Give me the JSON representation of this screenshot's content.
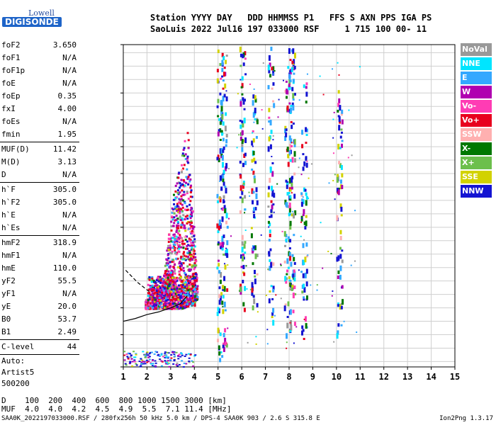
{
  "logo": {
    "top": "Lowell",
    "main": "DIGISONDE"
  },
  "header": {
    "line1": "Station YYYY DAY   DDD HHMMSS P1   FFS S AXN PPS IGA PS",
    "line2": "SaoLuis 2022 Jul16 197 033000 RSF     1 715 100 00- 11"
  },
  "parameters": [
    [
      {
        "k": "foF2",
        "v": "3.650"
      },
      {
        "k": "foF1",
        "v": "N/A"
      },
      {
        "k": "foF1p",
        "v": "N/A"
      },
      {
        "k": "foE",
        "v": "N/A"
      },
      {
        "k": "foEp",
        "v": "0.35"
      },
      {
        "k": "fxI",
        "v": "4.00"
      },
      {
        "k": "foEs",
        "v": "N/A"
      },
      {
        "k": "fmin",
        "v": "1.95"
      }
    ],
    [
      {
        "k": "MUF(D)",
        "v": "11.42"
      },
      {
        "k": "M(D)",
        "v": "3.13"
      },
      {
        "k": "D",
        "v": "N/A"
      }
    ],
    [
      {
        "k": "h`F",
        "v": "305.0"
      },
      {
        "k": "h`F2",
        "v": "305.0"
      },
      {
        "k": "h`E",
        "v": "N/A"
      },
      {
        "k": "h`Es",
        "v": "N/A"
      }
    ],
    [
      {
        "k": "hmF2",
        "v": "318.9"
      },
      {
        "k": "hmF1",
        "v": "N/A"
      },
      {
        "k": "hmE",
        "v": "110.0"
      },
      {
        "k": "yF2",
        "v": "55.5"
      },
      {
        "k": "yF1",
        "v": "N/A"
      },
      {
        "k": "yE",
        "v": "20.0"
      },
      {
        "k": "B0",
        "v": "53.7"
      },
      {
        "k": "B1",
        "v": "2.49"
      }
    ],
    [
      {
        "k": "C-level",
        "v": "44"
      }
    ]
  ],
  "auto": [
    "Auto:",
    "Artist5",
    "500200"
  ],
  "legend": [
    {
      "label": "NoVal",
      "color": "#999999"
    },
    {
      "label": "NNE",
      "color": "#00e5ff"
    },
    {
      "label": "E",
      "color": "#33a8ff"
    },
    {
      "label": "W",
      "color": "#b000b0"
    },
    {
      "label": "Vo-",
      "color": "#ff3cb4"
    },
    {
      "label": "Vo+",
      "color": "#e8001e"
    },
    {
      "label": "SSW",
      "color": "#ffb0b0"
    },
    {
      "label": "X-",
      "color": "#007800"
    },
    {
      "label": "X+",
      "color": "#6cbf4c"
    },
    {
      "label": "SSE",
      "color": "#d2d200"
    },
    {
      "label": "NNW",
      "color": "#1414d2"
    }
  ],
  "footer": {
    "d_row": "D    100  200  400  600  800 1000 1500 3000 [km]",
    "muf_row": "MUF  4.0  4.0  4.2  4.5  4.9  5.5  7.1 11.4 [MHz]",
    "file": "SAA0K_2022197033000.RSF / 280fx256h 50 kHz 5.0 km / DPS-4 SAA0K 903 / 2.6 S 315.8 E",
    "version": "Ion2Png 1.3.17"
  },
  "chart_data": {
    "type": "scatter",
    "title": "",
    "xlabel": "",
    "ylabel": "",
    "xlim": [
      1,
      15
    ],
    "ylim": [
      80,
      1280
    ],
    "x_ticks": [
      1,
      2,
      3,
      4,
      5,
      6,
      7,
      8,
      9,
      10,
      11,
      12,
      13,
      14,
      15
    ],
    "y_ticks": [
      80,
      200,
      300,
      400,
      500,
      600,
      700,
      800,
      900,
      1000,
      1100,
      1280
    ],
    "grid": true,
    "trace": {
      "name": "",
      "x": [
        1.0,
        1.5,
        2.0,
        2.5,
        3.0,
        3.4,
        3.7
      ],
      "y": [
        250,
        260,
        275,
        285,
        300,
        315,
        345
      ]
    },
    "dashed_trace": {
      "x": [
        1.1,
        1.6,
        2.1
      ],
      "y": [
        440,
        395,
        360
      ]
    },
    "f2_cloud": {
      "x_range": [
        1.9,
        4.1
      ],
      "y_range": [
        290,
        990
      ]
    },
    "columns": [
      {
        "x": 5.05,
        "y_range": [
          100,
          1280
        ]
      },
      {
        "x": 5.25,
        "y_range": [
          130,
          1280
        ]
      },
      {
        "x": 6.0,
        "y_range": [
          300,
          1280
        ]
      },
      {
        "x": 6.5,
        "y_range": [
          300,
          1100
        ]
      },
      {
        "x": 7.2,
        "y_range": [
          250,
          1280
        ]
      },
      {
        "x": 7.9,
        "y_range": [
          180,
          1280
        ]
      },
      {
        "x": 8.1,
        "y_range": [
          180,
          1280
        ]
      },
      {
        "x": 8.6,
        "y_range": [
          180,
          1150
        ]
      },
      {
        "x": 10.1,
        "y_range": [
          200,
          1130
        ]
      }
    ],
    "low_band": {
      "x_range": [
        1.0,
        4.0
      ],
      "y_range": [
        82,
        140
      ]
    }
  }
}
